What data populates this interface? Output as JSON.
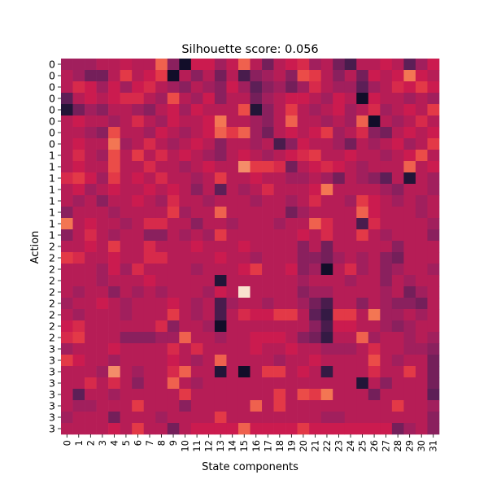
{
  "chart_data": {
    "type": "heatmap",
    "title": "Silhouette score: 0.056",
    "xlabel": "State components",
    "ylabel": "Action",
    "x_ticks": [
      "0",
      "1",
      "2",
      "3",
      "4",
      "5",
      "6",
      "7",
      "8",
      "9",
      "10",
      "11",
      "12",
      "13",
      "14",
      "15",
      "16",
      "17",
      "18",
      "19",
      "20",
      "21",
      "22",
      "23",
      "24",
      "25",
      "26",
      "27",
      "28",
      "29",
      "30",
      "31"
    ],
    "y_ticks": [
      "0",
      "0",
      "0",
      "0",
      "0",
      "0",
      "0",
      "0",
      "1",
      "1",
      "1",
      "1",
      "1",
      "1",
      "1",
      "1",
      "2",
      "2",
      "2",
      "2",
      "2",
      "2",
      "2",
      "2",
      "2",
      "3",
      "3",
      "3",
      "3",
      "3",
      "3",
      "3",
      "3"
    ],
    "colormap": "rocket",
    "value_range": [
      0,
      1
    ],
    "values": [
      [
        0.4,
        0.4,
        0.4,
        0.45,
        0.45,
        0.48,
        0.45,
        0.45,
        0.7,
        0.35,
        0.05,
        0.5,
        0.5,
        0.4,
        0.48,
        0.7,
        0.45,
        0.3,
        0.45,
        0.5,
        0.55,
        0.4,
        0.45,
        0.3,
        0.2,
        0.45,
        0.45,
        0.5,
        0.45,
        0.25,
        0.4,
        0.5
      ],
      [
        0.45,
        0.4,
        0.3,
        0.3,
        0.45,
        0.6,
        0.45,
        0.5,
        0.6,
        0.05,
        0.45,
        0.35,
        0.45,
        0.3,
        0.45,
        0.2,
        0.35,
        0.4,
        0.45,
        0.35,
        0.65,
        0.6,
        0.45,
        0.35,
        0.45,
        0.3,
        0.5,
        0.45,
        0.5,
        0.75,
        0.5,
        0.45
      ],
      [
        0.45,
        0.55,
        0.5,
        0.4,
        0.5,
        0.4,
        0.5,
        0.55,
        0.45,
        0.4,
        0.35,
        0.45,
        0.4,
        0.35,
        0.5,
        0.4,
        0.25,
        0.35,
        0.4,
        0.3,
        0.4,
        0.55,
        0.45,
        0.4,
        0.4,
        0.25,
        0.4,
        0.45,
        0.55,
        0.5,
        0.6,
        0.5
      ],
      [
        0.25,
        0.45,
        0.5,
        0.45,
        0.5,
        0.55,
        0.55,
        0.45,
        0.4,
        0.65,
        0.45,
        0.4,
        0.5,
        0.35,
        0.45,
        0.45,
        0.3,
        0.4,
        0.45,
        0.5,
        0.5,
        0.45,
        0.4,
        0.5,
        0.45,
        0.05,
        0.5,
        0.45,
        0.45,
        0.4,
        0.45,
        0.4
      ],
      [
        0.1,
        0.3,
        0.4,
        0.35,
        0.45,
        0.45,
        0.4,
        0.35,
        0.45,
        0.5,
        0.4,
        0.5,
        0.45,
        0.45,
        0.45,
        0.65,
        0.1,
        0.35,
        0.45,
        0.6,
        0.45,
        0.4,
        0.45,
        0.5,
        0.4,
        0.45,
        0.55,
        0.4,
        0.45,
        0.5,
        0.45,
        0.6
      ],
      [
        0.45,
        0.5,
        0.45,
        0.45,
        0.4,
        0.45,
        0.55,
        0.45,
        0.4,
        0.5,
        0.45,
        0.45,
        0.5,
        0.75,
        0.45,
        0.45,
        0.4,
        0.35,
        0.45,
        0.7,
        0.45,
        0.45,
        0.4,
        0.45,
        0.4,
        0.7,
        0.05,
        0.45,
        0.4,
        0.45,
        0.55,
        0.45
      ],
      [
        0.45,
        0.45,
        0.4,
        0.35,
        0.65,
        0.45,
        0.45,
        0.4,
        0.5,
        0.45,
        0.4,
        0.45,
        0.5,
        0.7,
        0.6,
        0.7,
        0.4,
        0.3,
        0.45,
        0.5,
        0.45,
        0.5,
        0.6,
        0.4,
        0.45,
        0.55,
        0.35,
        0.3,
        0.45,
        0.5,
        0.45,
        0.5
      ],
      [
        0.45,
        0.5,
        0.45,
        0.45,
        0.75,
        0.4,
        0.45,
        0.55,
        0.45,
        0.4,
        0.45,
        0.5,
        0.45,
        0.35,
        0.45,
        0.45,
        0.4,
        0.45,
        0.2,
        0.35,
        0.5,
        0.45,
        0.45,
        0.4,
        0.3,
        0.45,
        0.4,
        0.45,
        0.5,
        0.4,
        0.45,
        0.6
      ],
      [
        0.45,
        0.55,
        0.45,
        0.4,
        0.65,
        0.45,
        0.6,
        0.45,
        0.55,
        0.45,
        0.5,
        0.45,
        0.4,
        0.35,
        0.45,
        0.5,
        0.45,
        0.4,
        0.45,
        0.5,
        0.55,
        0.6,
        0.45,
        0.45,
        0.5,
        0.45,
        0.45,
        0.4,
        0.45,
        0.5,
        0.65,
        0.45
      ],
      [
        0.45,
        0.5,
        0.45,
        0.45,
        0.65,
        0.45,
        0.45,
        0.55,
        0.45,
        0.45,
        0.4,
        0.45,
        0.5,
        0.45,
        0.45,
        0.8,
        0.6,
        0.6,
        0.55,
        0.3,
        0.45,
        0.5,
        0.55,
        0.5,
        0.45,
        0.4,
        0.45,
        0.45,
        0.45,
        0.7,
        0.45,
        0.5
      ],
      [
        0.55,
        0.6,
        0.5,
        0.4,
        0.6,
        0.45,
        0.5,
        0.45,
        0.55,
        0.45,
        0.45,
        0.4,
        0.45,
        0.6,
        0.45,
        0.45,
        0.5,
        0.45,
        0.45,
        0.4,
        0.4,
        0.45,
        0.4,
        0.3,
        0.45,
        0.4,
        0.35,
        0.25,
        0.45,
        0.1,
        0.45,
        0.4
      ],
      [
        0.45,
        0.5,
        0.4,
        0.45,
        0.5,
        0.45,
        0.45,
        0.5,
        0.45,
        0.5,
        0.45,
        0.35,
        0.45,
        0.25,
        0.45,
        0.4,
        0.45,
        0.55,
        0.45,
        0.45,
        0.45,
        0.5,
        0.75,
        0.45,
        0.45,
        0.45,
        0.45,
        0.4,
        0.35,
        0.45,
        0.45,
        0.4
      ],
      [
        0.45,
        0.4,
        0.45,
        0.35,
        0.45,
        0.45,
        0.5,
        0.45,
        0.4,
        0.55,
        0.45,
        0.45,
        0.4,
        0.45,
        0.45,
        0.45,
        0.4,
        0.45,
        0.45,
        0.4,
        0.45,
        0.55,
        0.45,
        0.45,
        0.4,
        0.6,
        0.5,
        0.45,
        0.4,
        0.45,
        0.4,
        0.45
      ],
      [
        0.35,
        0.45,
        0.45,
        0.45,
        0.4,
        0.45,
        0.45,
        0.45,
        0.45,
        0.6,
        0.4,
        0.45,
        0.45,
        0.7,
        0.45,
        0.45,
        0.45,
        0.45,
        0.45,
        0.3,
        0.4,
        0.45,
        0.45,
        0.45,
        0.45,
        0.7,
        0.5,
        0.45,
        0.45,
        0.45,
        0.4,
        0.45
      ],
      [
        0.75,
        0.45,
        0.5,
        0.45,
        0.45,
        0.4,
        0.45,
        0.55,
        0.55,
        0.45,
        0.45,
        0.35,
        0.45,
        0.45,
        0.4,
        0.45,
        0.45,
        0.45,
        0.4,
        0.45,
        0.45,
        0.7,
        0.55,
        0.45,
        0.45,
        0.2,
        0.55,
        0.45,
        0.45,
        0.45,
        0.45,
        0.4
      ],
      [
        0.35,
        0.45,
        0.55,
        0.45,
        0.4,
        0.45,
        0.45,
        0.35,
        0.35,
        0.45,
        0.4,
        0.45,
        0.4,
        0.6,
        0.45,
        0.45,
        0.45,
        0.45,
        0.45,
        0.45,
        0.5,
        0.45,
        0.55,
        0.45,
        0.45,
        0.6,
        0.45,
        0.4,
        0.45,
        0.45,
        0.45,
        0.35
      ],
      [
        0.45,
        0.45,
        0.5,
        0.45,
        0.6,
        0.45,
        0.45,
        0.55,
        0.45,
        0.45,
        0.45,
        0.5,
        0.45,
        0.45,
        0.45,
        0.5,
        0.45,
        0.45,
        0.45,
        0.45,
        0.35,
        0.45,
        0.3,
        0.45,
        0.45,
        0.45,
        0.45,
        0.45,
        0.35,
        0.45,
        0.45,
        0.45
      ],
      [
        0.6,
        0.55,
        0.45,
        0.45,
        0.5,
        0.45,
        0.45,
        0.55,
        0.55,
        0.45,
        0.45,
        0.45,
        0.45,
        0.5,
        0.45,
        0.45,
        0.4,
        0.45,
        0.45,
        0.45,
        0.35,
        0.35,
        0.3,
        0.4,
        0.45,
        0.4,
        0.45,
        0.35,
        0.3,
        0.45,
        0.45,
        0.45
      ],
      [
        0.45,
        0.45,
        0.45,
        0.4,
        0.5,
        0.4,
        0.55,
        0.45,
        0.45,
        0.45,
        0.45,
        0.4,
        0.45,
        0.45,
        0.45,
        0.5,
        0.6,
        0.45,
        0.45,
        0.5,
        0.35,
        0.4,
        0.05,
        0.45,
        0.55,
        0.4,
        0.45,
        0.35,
        0.4,
        0.45,
        0.45,
        0.4
      ],
      [
        0.45,
        0.45,
        0.45,
        0.4,
        0.45,
        0.45,
        0.45,
        0.5,
        0.45,
        0.45,
        0.45,
        0.45,
        0.45,
        0.1,
        0.45,
        0.45,
        0.45,
        0.45,
        0.45,
        0.45,
        0.4,
        0.45,
        0.45,
        0.45,
        0.4,
        0.45,
        0.45,
        0.35,
        0.45,
        0.4,
        0.45,
        0.45
      ],
      [
        0.45,
        0.4,
        0.45,
        0.45,
        0.35,
        0.45,
        0.4,
        0.45,
        0.4,
        0.45,
        0.45,
        0.45,
        0.4,
        0.5,
        0.45,
        0.98,
        0.45,
        0.45,
        0.45,
        0.45,
        0.35,
        0.4,
        0.4,
        0.45,
        0.45,
        0.45,
        0.45,
        0.4,
        0.45,
        0.3,
        0.4,
        0.45
      ],
      [
        0.4,
        0.45,
        0.45,
        0.5,
        0.45,
        0.4,
        0.45,
        0.45,
        0.45,
        0.5,
        0.45,
        0.4,
        0.45,
        0.2,
        0.4,
        0.45,
        0.45,
        0.4,
        0.45,
        0.45,
        0.4,
        0.3,
        0.2,
        0.45,
        0.45,
        0.35,
        0.45,
        0.4,
        0.35,
        0.35,
        0.3,
        0.45
      ],
      [
        0.45,
        0.4,
        0.45,
        0.45,
        0.45,
        0.4,
        0.45,
        0.45,
        0.45,
        0.6,
        0.45,
        0.4,
        0.45,
        0.2,
        0.45,
        0.55,
        0.5,
        0.5,
        0.6,
        0.6,
        0.45,
        0.25,
        0.15,
        0.6,
        0.6,
        0.45,
        0.75,
        0.4,
        0.4,
        0.45,
        0.4,
        0.45
      ],
      [
        0.5,
        0.55,
        0.45,
        0.45,
        0.45,
        0.45,
        0.45,
        0.45,
        0.55,
        0.35,
        0.45,
        0.45,
        0.4,
        0.05,
        0.45,
        0.45,
        0.45,
        0.45,
        0.45,
        0.45,
        0.45,
        0.35,
        0.2,
        0.5,
        0.5,
        0.45,
        0.45,
        0.4,
        0.35,
        0.4,
        0.45,
        0.45
      ],
      [
        0.55,
        0.6,
        0.45,
        0.45,
        0.45,
        0.35,
        0.35,
        0.35,
        0.4,
        0.4,
        0.7,
        0.45,
        0.45,
        0.4,
        0.45,
        0.45,
        0.5,
        0.5,
        0.5,
        0.45,
        0.35,
        0.3,
        0.15,
        0.45,
        0.45,
        0.7,
        0.4,
        0.45,
        0.45,
        0.4,
        0.45,
        0.4
      ],
      [
        0.4,
        0.45,
        0.45,
        0.45,
        0.5,
        0.45,
        0.45,
        0.45,
        0.45,
        0.55,
        0.45,
        0.55,
        0.45,
        0.45,
        0.45,
        0.45,
        0.5,
        0.45,
        0.45,
        0.5,
        0.45,
        0.45,
        0.4,
        0.4,
        0.4,
        0.45,
        0.55,
        0.45,
        0.45,
        0.4,
        0.4,
        0.35
      ],
      [
        0.6,
        0.5,
        0.45,
        0.45,
        0.4,
        0.45,
        0.45,
        0.45,
        0.45,
        0.5,
        0.45,
        0.4,
        0.45,
        0.7,
        0.45,
        0.45,
        0.45,
        0.45,
        0.4,
        0.45,
        0.45,
        0.5,
        0.45,
        0.45,
        0.45,
        0.45,
        0.65,
        0.45,
        0.4,
        0.45,
        0.45,
        0.3
      ],
      [
        0.45,
        0.45,
        0.45,
        0.4,
        0.8,
        0.45,
        0.4,
        0.45,
        0.45,
        0.55,
        0.7,
        0.45,
        0.45,
        0.1,
        0.45,
        0.05,
        0.45,
        0.6,
        0.6,
        0.45,
        0.5,
        0.45,
        0.15,
        0.45,
        0.45,
        0.45,
        0.55,
        0.45,
        0.45,
        0.6,
        0.45,
        0.3
      ],
      [
        0.45,
        0.45,
        0.55,
        0.45,
        0.55,
        0.45,
        0.35,
        0.45,
        0.45,
        0.7,
        0.45,
        0.4,
        0.45,
        0.45,
        0.45,
        0.45,
        0.45,
        0.45,
        0.45,
        0.45,
        0.45,
        0.45,
        0.45,
        0.45,
        0.45,
        0.1,
        0.45,
        0.35,
        0.45,
        0.45,
        0.45,
        0.3
      ],
      [
        0.45,
        0.25,
        0.45,
        0.45,
        0.4,
        0.45,
        0.45,
        0.45,
        0.45,
        0.45,
        0.6,
        0.45,
        0.45,
        0.45,
        0.45,
        0.45,
        0.45,
        0.45,
        0.6,
        0.45,
        0.65,
        0.6,
        0.75,
        0.45,
        0.45,
        0.45,
        0.3,
        0.45,
        0.45,
        0.45,
        0.45,
        0.25
      ],
      [
        0.45,
        0.4,
        0.4,
        0.45,
        0.45,
        0.45,
        0.6,
        0.45,
        0.45,
        0.45,
        0.35,
        0.45,
        0.45,
        0.45,
        0.45,
        0.45,
        0.7,
        0.45,
        0.6,
        0.45,
        0.45,
        0.45,
        0.45,
        0.45,
        0.45,
        0.45,
        0.45,
        0.45,
        0.6,
        0.45,
        0.45,
        0.4
      ],
      [
        0.4,
        0.45,
        0.45,
        0.45,
        0.3,
        0.45,
        0.45,
        0.45,
        0.4,
        0.45,
        0.45,
        0.45,
        0.45,
        0.6,
        0.45,
        0.45,
        0.45,
        0.45,
        0.45,
        0.45,
        0.45,
        0.45,
        0.4,
        0.4,
        0.45,
        0.45,
        0.45,
        0.45,
        0.45,
        0.45,
        0.45,
        0.35
      ],
      [
        0.45,
        0.45,
        0.45,
        0.45,
        0.5,
        0.45,
        0.6,
        0.45,
        0.45,
        0.3,
        0.45,
        0.5,
        0.5,
        0.5,
        0.5,
        0.7,
        0.5,
        0.5,
        0.5,
        0.5,
        0.6,
        0.5,
        0.5,
        0.5,
        0.5,
        0.5,
        0.5,
        0.5,
        0.3,
        0.4,
        0.45,
        0.35
      ]
    ]
  }
}
